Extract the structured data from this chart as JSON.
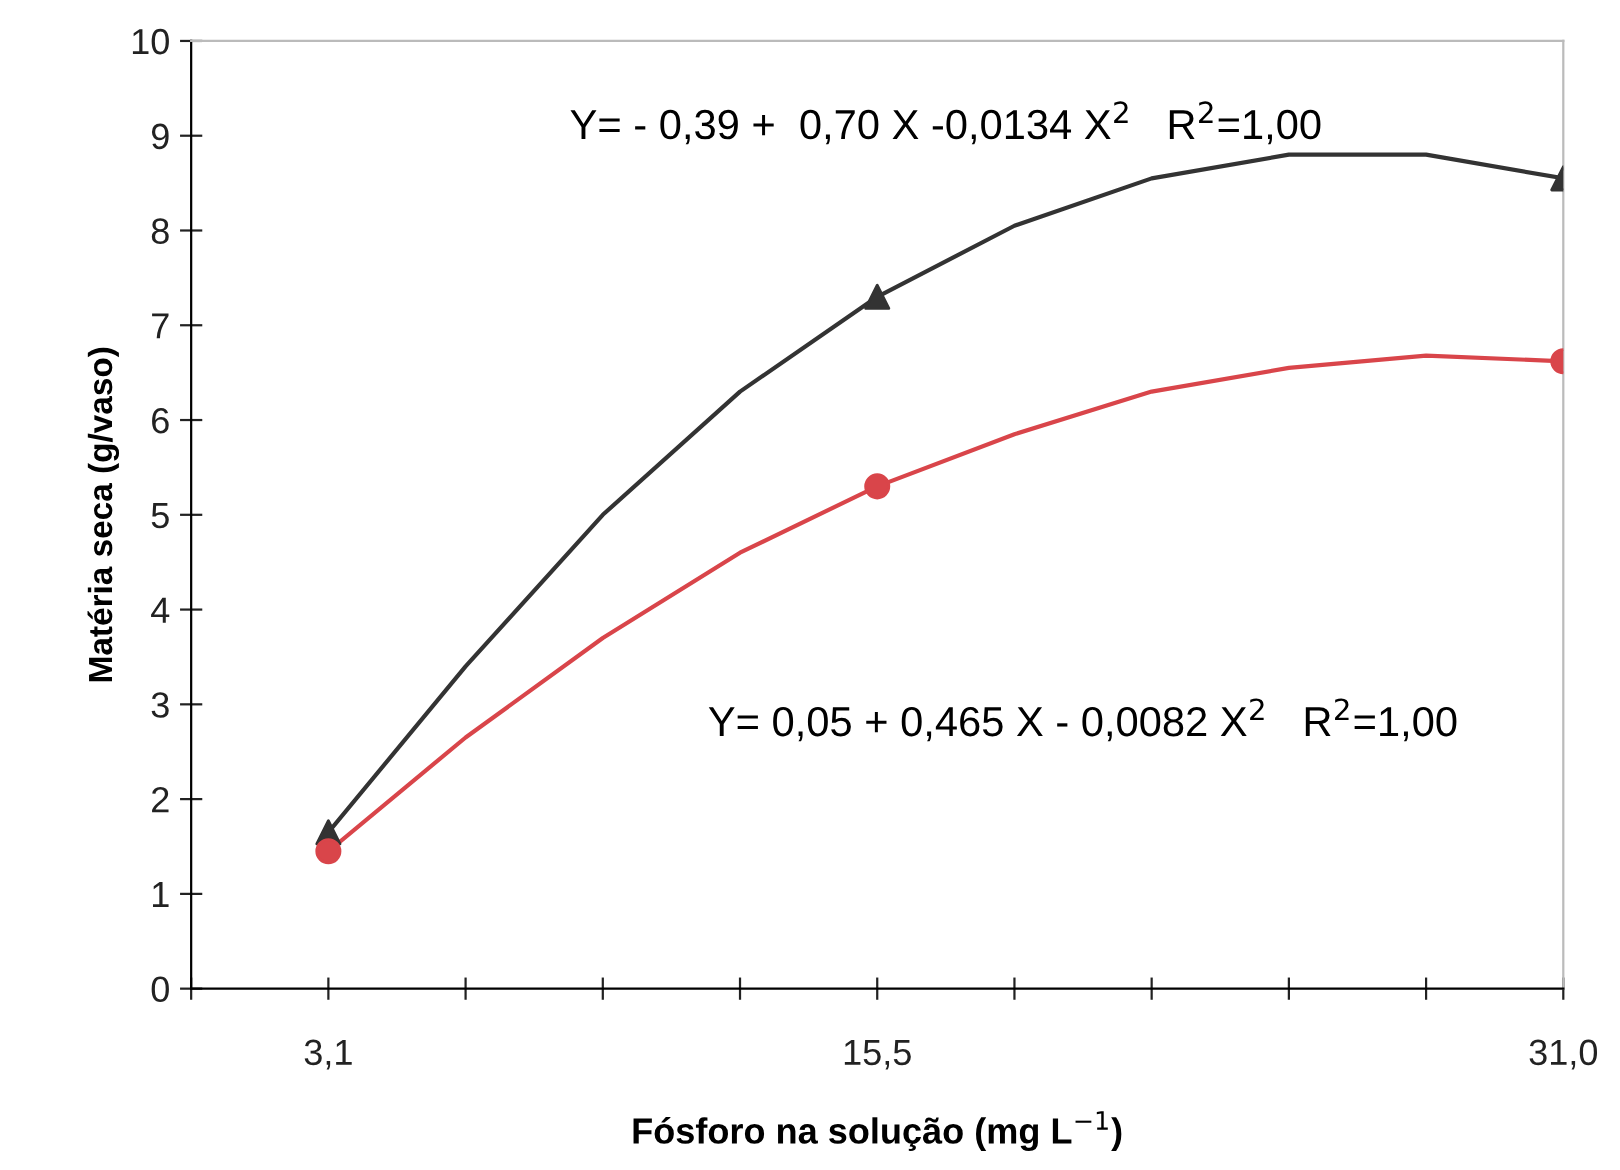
{
  "chart_data": {
    "type": "line",
    "xlabel": "Fósforo na solução (mg L$^{−1}$)",
    "ylabel": "Matéria seca (g/vaso)",
    "xlim": [
      0,
      31.0
    ],
    "ylim": [
      0,
      10
    ],
    "yticks": [
      0,
      1,
      2,
      3,
      4,
      5,
      6,
      7,
      8,
      9,
      10
    ],
    "xticks": [
      {
        "value": 0,
        "label": null
      },
      {
        "value": 3.1,
        "label": "3,1"
      },
      {
        "value": 6.2,
        "label": null
      },
      {
        "value": 9.3,
        "label": null
      },
      {
        "value": 12.4,
        "label": null
      },
      {
        "value": 15.5,
        "label": "15,5"
      },
      {
        "value": 18.6,
        "label": null
      },
      {
        "value": 21.7,
        "label": null
      },
      {
        "value": 24.8,
        "label": null
      },
      {
        "value": 27.9,
        "label": null
      },
      {
        "value": 31.0,
        "label": "31,0"
      }
    ],
    "grid": false,
    "legend": false,
    "series": [
      {
        "color": "#333333",
        "marker": "none",
        "x": [
          3.1,
          6.2,
          9.3,
          12.4,
          15.5,
          18.6,
          21.7,
          24.8,
          27.9,
          31.0
        ],
        "values": [
          1.65,
          3.4,
          5.0,
          6.3,
          7.3,
          8.05,
          8.55,
          8.8,
          8.8,
          8.55
        ]
      },
      {
        "color": "#d9454a",
        "marker": "none",
        "x": [
          3.1,
          6.2,
          9.3,
          12.4,
          15.5,
          18.6,
          21.7,
          24.8,
          27.9,
          31.0
        ],
        "values": [
          1.45,
          2.65,
          3.7,
          4.6,
          5.3,
          5.85,
          6.3,
          6.55,
          6.68,
          6.62
        ]
      },
      {
        "type": "scatter",
        "color": "#333333",
        "marker": "triangle",
        "x": [
          3.1,
          15.5,
          31.0
        ],
        "values": [
          1.65,
          7.3,
          8.55
        ]
      },
      {
        "type": "scatter",
        "color": "#d9454a",
        "marker": "circle",
        "x": [
          3.1,
          15.5,
          31.0
        ],
        "values": [
          1.45,
          5.3,
          6.62
        ]
      }
    ],
    "annotations": [
      "Y= - 0,39 +  0,70 X -0,0134 X$^{2}$   R$^{2}$=1,00",
      "Y= 0,05 + 0,465 X - 0,0082 X$^{2}$   R$^{2}$=1,00"
    ]
  }
}
